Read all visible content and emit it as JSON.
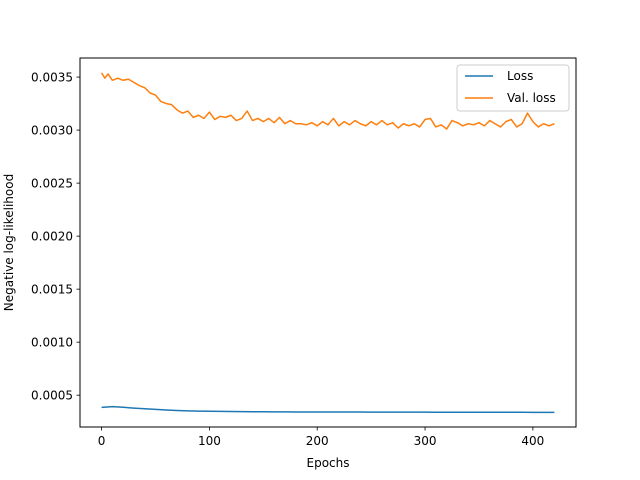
{
  "chart_data": {
    "type": "line",
    "xlabel": "Epochs",
    "ylabel": "Negative log-likelihood",
    "xlim": [
      -20,
      440
    ],
    "ylim": [
      0.0002,
      0.00368
    ],
    "xticks": [
      0,
      100,
      200,
      300,
      400
    ],
    "xtick_labels": [
      "0",
      "100",
      "200",
      "300",
      "400"
    ],
    "yticks": [
      0.0005,
      0.001,
      0.0015,
      0.002,
      0.0025,
      0.003,
      0.0035
    ],
    "ytick_labels": [
      "0.0005",
      "0.0010",
      "0.0015",
      "0.0020",
      "0.0025",
      "0.0030",
      "0.0035"
    ],
    "grid": false,
    "legend_position": "top-right",
    "series": [
      {
        "name": "Loss",
        "color": "#1f77b4",
        "x": [
          0,
          10,
          20,
          30,
          40,
          50,
          60,
          70,
          80,
          90,
          100,
          110,
          120,
          130,
          140,
          150,
          160,
          170,
          180,
          190,
          200,
          210,
          220,
          230,
          240,
          250,
          260,
          270,
          280,
          290,
          300,
          310,
          320,
          330,
          340,
          350,
          360,
          370,
          380,
          390,
          400,
          410,
          420
        ],
        "values": [
          0.000385,
          0.000392,
          0.000386,
          0.000378,
          0.000372,
          0.000366,
          0.00036,
          0.000356,
          0.000352,
          0.00035,
          0.000348,
          0.000347,
          0.000346,
          0.000345,
          0.000344,
          0.000344,
          0.000343,
          0.000343,
          0.000342,
          0.000342,
          0.000342,
          0.000341,
          0.000341,
          0.000341,
          0.000341,
          0.00034,
          0.00034,
          0.00034,
          0.00034,
          0.00034,
          0.00034,
          0.000339,
          0.000339,
          0.000339,
          0.000339,
          0.000339,
          0.000339,
          0.000339,
          0.000339,
          0.000339,
          0.000338,
          0.000338,
          0.000338
        ]
      },
      {
        "name": "Val. loss",
        "color": "#ff7f0e",
        "x": [
          0,
          3,
          6,
          10,
          15,
          20,
          25,
          30,
          35,
          40,
          45,
          50,
          55,
          60,
          65,
          70,
          75,
          80,
          85,
          90,
          95,
          100,
          105,
          110,
          115,
          120,
          125,
          130,
          135,
          140,
          145,
          150,
          155,
          160,
          165,
          170,
          175,
          180,
          185,
          190,
          195,
          200,
          205,
          210,
          215,
          220,
          225,
          230,
          235,
          240,
          245,
          250,
          255,
          260,
          265,
          270,
          275,
          280,
          285,
          290,
          295,
          300,
          305,
          310,
          315,
          320,
          325,
          330,
          335,
          340,
          345,
          350,
          355,
          360,
          365,
          370,
          375,
          380,
          385,
          390,
          395,
          400,
          405,
          410,
          415,
          420
        ],
        "values": [
          0.00354,
          0.00349,
          0.00353,
          0.00347,
          0.00349,
          0.00347,
          0.00348,
          0.00345,
          0.00342,
          0.0034,
          0.00335,
          0.00333,
          0.00327,
          0.00325,
          0.00324,
          0.00319,
          0.00316,
          0.00318,
          0.00312,
          0.00314,
          0.00311,
          0.00317,
          0.0031,
          0.00313,
          0.00312,
          0.00314,
          0.00309,
          0.00311,
          0.00318,
          0.00309,
          0.00311,
          0.00308,
          0.00311,
          0.00307,
          0.00312,
          0.00306,
          0.00309,
          0.00306,
          0.00306,
          0.00305,
          0.00307,
          0.00304,
          0.00308,
          0.00305,
          0.00311,
          0.00304,
          0.00308,
          0.00305,
          0.00309,
          0.00306,
          0.00304,
          0.00308,
          0.00305,
          0.00309,
          0.00305,
          0.00307,
          0.00302,
          0.00306,
          0.00304,
          0.00306,
          0.00303,
          0.0031,
          0.00311,
          0.00303,
          0.00305,
          0.00301,
          0.00309,
          0.00307,
          0.00304,
          0.00306,
          0.00305,
          0.00307,
          0.00304,
          0.00309,
          0.00306,
          0.00303,
          0.00308,
          0.0031,
          0.00303,
          0.00306,
          0.00316,
          0.00308,
          0.00303,
          0.00306,
          0.00304,
          0.00306
        ]
      }
    ]
  }
}
